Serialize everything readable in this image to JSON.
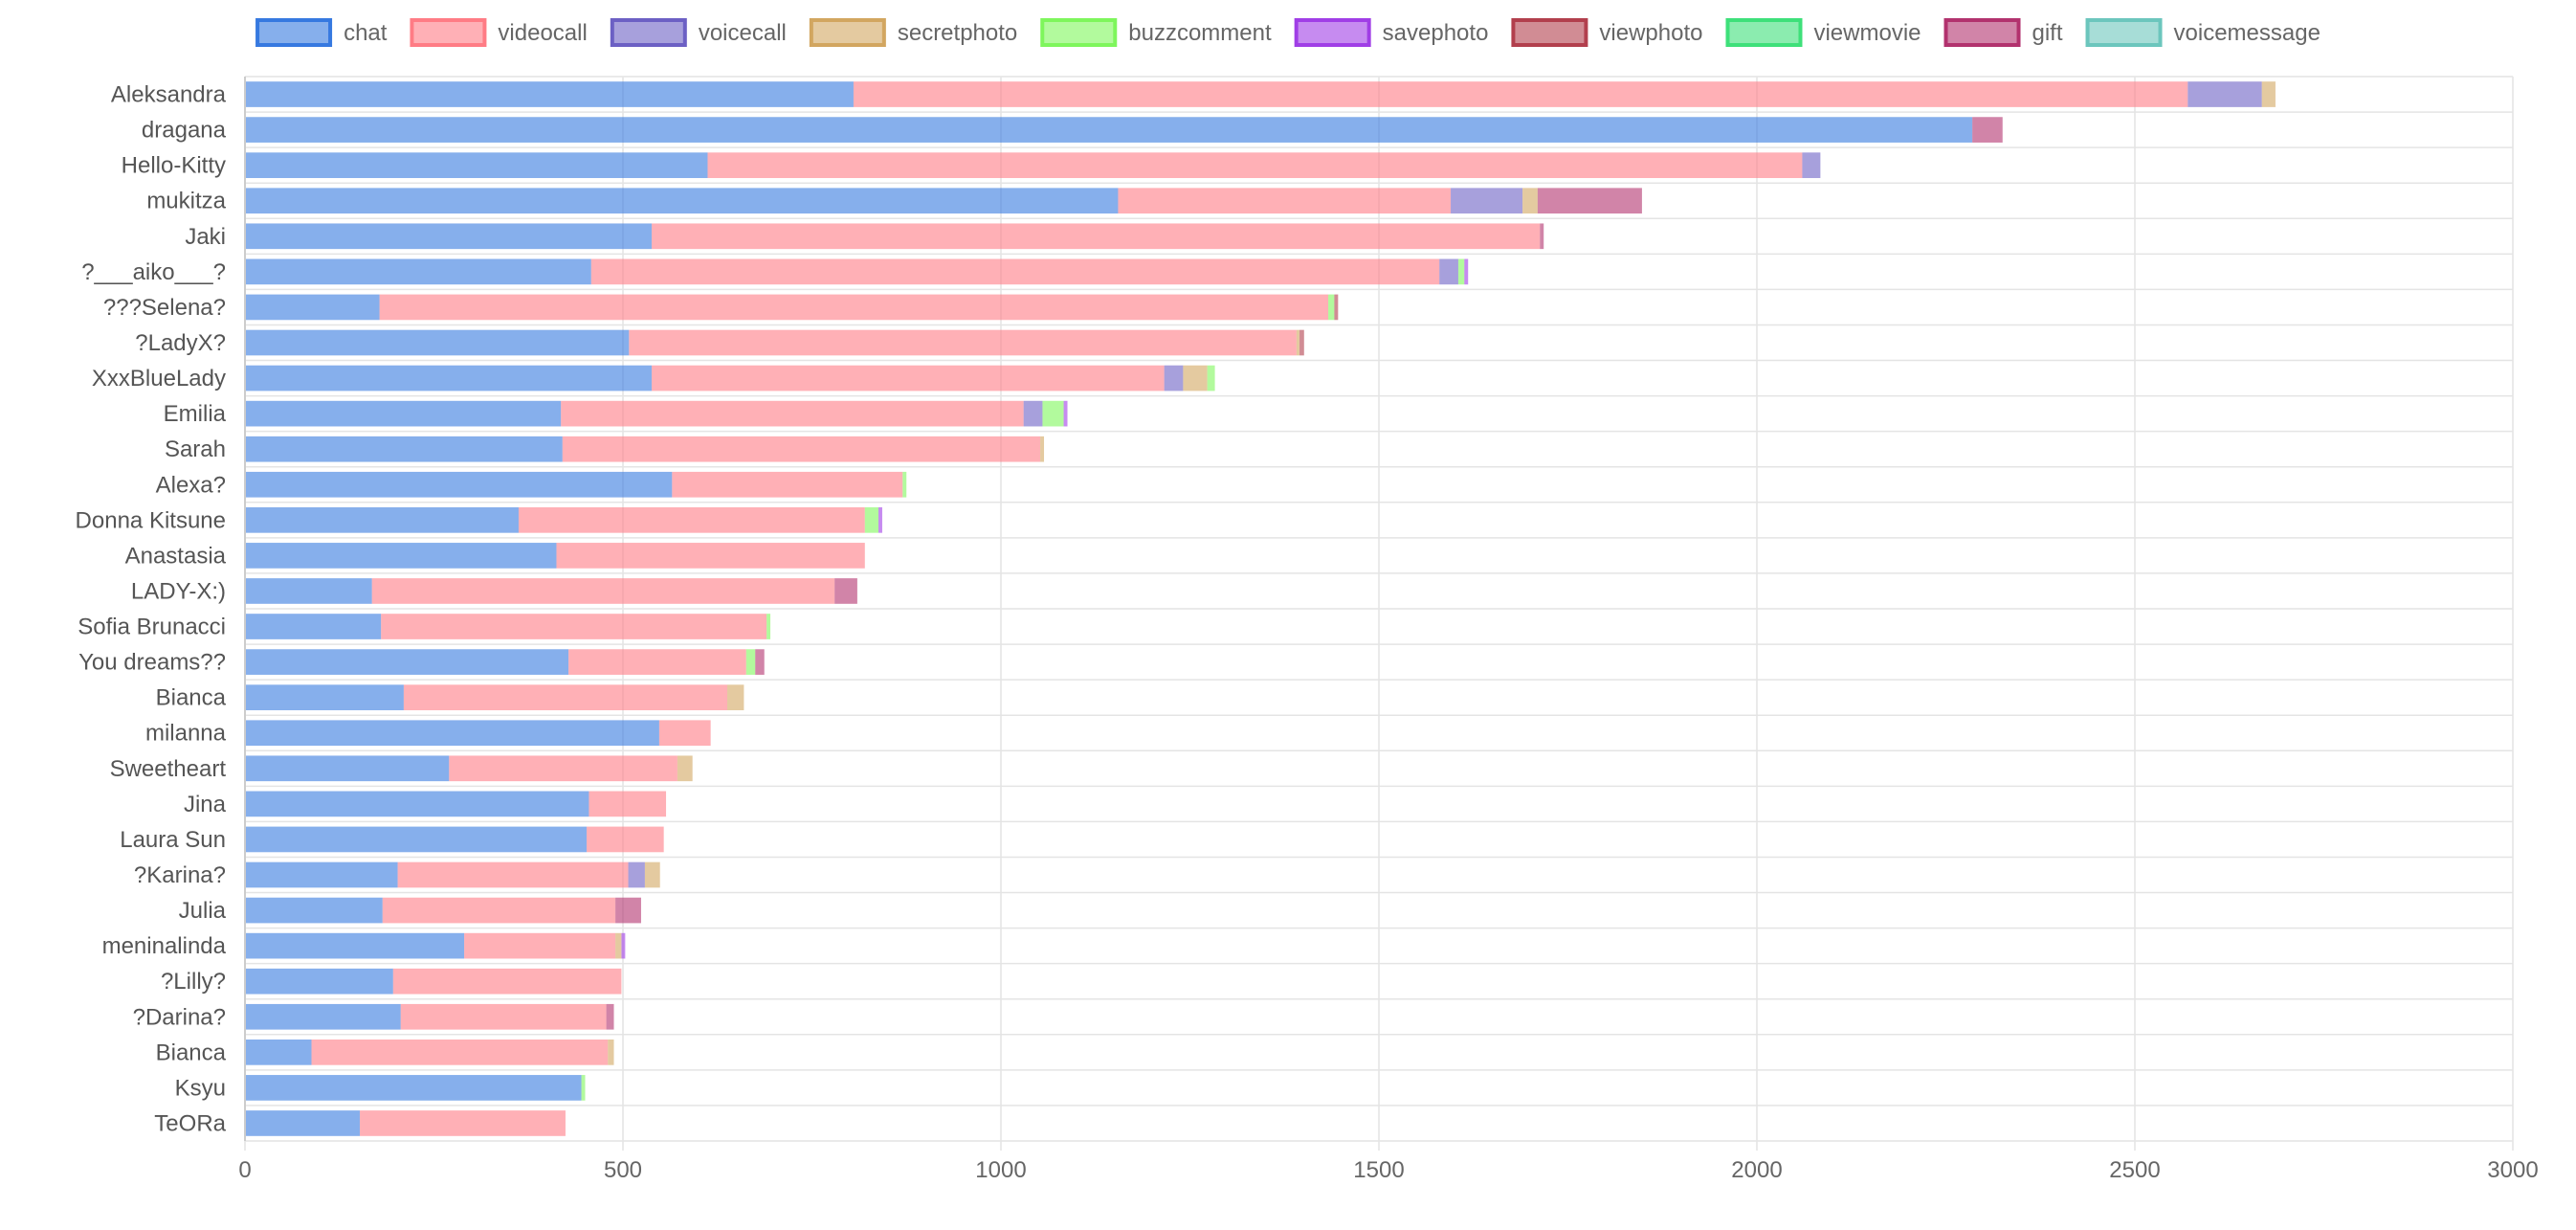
{
  "chart_data": {
    "type": "bar",
    "orientation": "horizontal",
    "stacked": true,
    "legend_position": "top",
    "grid": true,
    "xlim": [
      0,
      3000
    ],
    "x_ticks": [
      "0",
      "500",
      "1000",
      "1500",
      "2000",
      "2500",
      "3000"
    ],
    "categories": [
      "Aleksandra",
      "dragana",
      "Hello-Kitty",
      "mukitza",
      "Jaki",
      "?___aiko___?",
      "???Selena?",
      "?LadyX?",
      "XxxBlueLady",
      "Emilia",
      "Sarah",
      "Alexa?",
      "Donna Kitsune",
      "Anastasia",
      "LADY-X:)",
      "Sofia Brunacci",
      "You dreams??",
      "Bianca",
      "milanna",
      "Sweetheart",
      "Jina",
      "Laura Sun",
      "?Karina?",
      "Julia",
      "meninalinda",
      "?Lilly?",
      "?Darina?",
      "Bianca",
      "Ksyu",
      "TeORa"
    ],
    "series": [
      {
        "name": "chat",
        "color": "#3679e0",
        "values": [
          805,
          2285,
          612,
          1155,
          538,
          458,
          178,
          508,
          538,
          418,
          420,
          565,
          362,
          412,
          168,
          180,
          428,
          210,
          548,
          270,
          455,
          452,
          202,
          182,
          290,
          196,
          206,
          88,
          445,
          152
        ]
      },
      {
        "name": "videocall",
        "color": "#ff7c85",
        "values": [
          1765,
          0,
          1448,
          440,
          1175,
          1122,
          1255,
          883,
          678,
          612,
          632,
          305,
          458,
          408,
          612,
          510,
          235,
          428,
          68,
          302,
          102,
          102,
          305,
          308,
          200,
          302,
          272,
          392,
          0,
          272
        ]
      },
      {
        "name": "voicecall",
        "color": "#6c60c4",
        "values": [
          98,
          0,
          24,
          95,
          0,
          25,
          0,
          0,
          25,
          25,
          0,
          0,
          0,
          0,
          0,
          0,
          0,
          0,
          0,
          0,
          0,
          0,
          22,
          0,
          0,
          0,
          0,
          0,
          0,
          0
        ]
      },
      {
        "name": "secretphoto",
        "color": "#d2a660",
        "values": [
          18,
          0,
          0,
          20,
          0,
          0,
          0,
          4,
          32,
          0,
          5,
          0,
          0,
          0,
          0,
          0,
          0,
          22,
          0,
          20,
          0,
          0,
          20,
          0,
          8,
          0,
          0,
          8,
          0,
          0
        ]
      },
      {
        "name": "buzzcomment",
        "color": "#7ef65c",
        "values": [
          0,
          0,
          0,
          0,
          0,
          8,
          8,
          0,
          10,
          28,
          0,
          5,
          18,
          0,
          0,
          5,
          12,
          0,
          0,
          0,
          0,
          0,
          0,
          0,
          0,
          0,
          0,
          0,
          5,
          0
        ]
      },
      {
        "name": "savephoto",
        "color": "#a03ee6",
        "values": [
          0,
          0,
          0,
          0,
          0,
          5,
          0,
          0,
          0,
          5,
          0,
          0,
          5,
          0,
          0,
          0,
          0,
          0,
          0,
          0,
          0,
          0,
          0,
          0,
          5,
          0,
          0,
          0,
          0,
          0
        ]
      },
      {
        "name": "viewphoto",
        "color": "#b23f4d",
        "values": [
          0,
          0,
          0,
          0,
          0,
          0,
          5,
          6,
          0,
          0,
          0,
          0,
          0,
          0,
          0,
          0,
          0,
          0,
          0,
          0,
          0,
          0,
          0,
          0,
          0,
          0,
          0,
          0,
          0,
          0
        ]
      },
      {
        "name": "viewmovie",
        "color": "#3ee07a",
        "values": [
          0,
          0,
          0,
          0,
          0,
          0,
          0,
          0,
          0,
          0,
          0,
          0,
          0,
          0,
          0,
          0,
          0,
          0,
          0,
          0,
          0,
          0,
          0,
          0,
          0,
          0,
          0,
          0,
          0,
          0
        ]
      },
      {
        "name": "gift",
        "color": "#b2326e",
        "values": [
          0,
          40,
          0,
          138,
          5,
          0,
          0,
          0,
          0,
          0,
          0,
          0,
          0,
          0,
          30,
          0,
          12,
          0,
          0,
          0,
          0,
          0,
          0,
          34,
          0,
          0,
          10,
          0,
          0,
          0
        ]
      },
      {
        "name": "voicemessage",
        "color": "#6cc6bd",
        "values": [
          0,
          0,
          0,
          0,
          0,
          0,
          0,
          0,
          0,
          0,
          0,
          0,
          0,
          0,
          0,
          0,
          0,
          0,
          0,
          0,
          0,
          0,
          0,
          0,
          0,
          0,
          0,
          0,
          0,
          0
        ]
      }
    ]
  }
}
